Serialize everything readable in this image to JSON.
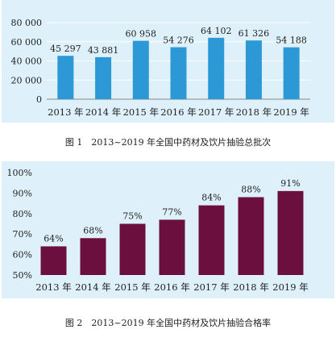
{
  "chart_data": [
    {
      "type": "bar",
      "categories": [
        "2013 年",
        "2014 年",
        "2015 年",
        "2016 年",
        "2017 年",
        "2018 年",
        "2019 年"
      ],
      "values": [
        45297,
        43881,
        60958,
        54276,
        64102,
        61326,
        54188
      ],
      "value_labels": [
        "45 297",
        "43 881",
        "60 958",
        "54 276",
        "64 102",
        "61 326",
        "54 188"
      ],
      "ylim": [
        0,
        80000
      ],
      "yticks": [
        0,
        20000,
        40000,
        60000,
        80000
      ],
      "ytick_labels": [
        "0",
        "20 000",
        "40 000",
        "60 000",
        "80 000"
      ],
      "caption": "图 1　2013~2019 年全国中药材及饮片抽验总批次",
      "bar_color": "#2d98d6",
      "background": "#def0f9",
      "grid": true
    },
    {
      "type": "bar",
      "categories": [
        "2013 年",
        "2014 年",
        "2015 年",
        "2016 年",
        "2017 年",
        "2018 年",
        "2019 年"
      ],
      "values": [
        64,
        68,
        75,
        77,
        84,
        88,
        91
      ],
      "value_labels": [
        "64%",
        "68%",
        "75%",
        "77%",
        "84%",
        "88%",
        "91%"
      ],
      "ylim": [
        50,
        100
      ],
      "yticks": [
        50,
        60,
        70,
        80,
        90,
        100
      ],
      "ytick_labels": [
        "50%",
        "60%",
        "70%",
        "80%",
        "90%",
        "100%"
      ],
      "caption": "图 2　2013~2019 年全国中药材及饮片抽验合格率",
      "bar_color": "#6b0f3f",
      "background": "#def0f9",
      "grid": false
    }
  ]
}
